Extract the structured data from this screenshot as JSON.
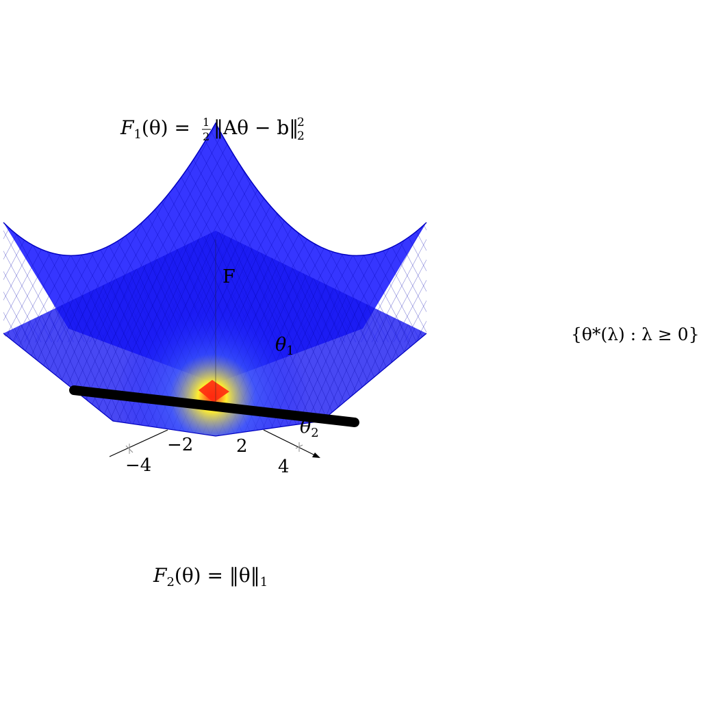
{
  "labels": {
    "f1_formula": {
      "lhs": "F",
      "lhs_sub": "1",
      "lhs_arg": "(θ) = ",
      "frac_num": "1",
      "frac_den": "2",
      "body": "‖Aθ − b‖",
      "sup": "2",
      "sub": "2"
    },
    "f2_formula": {
      "lhs": "F",
      "lhs_sub": "2",
      "rhs": "(θ) = ‖θ‖",
      "sub": "1"
    },
    "path_label": "{θ*(λ) : λ ≥ 0}",
    "vertical_axis": "F",
    "theta1_axis": {
      "base": "θ",
      "sub": "1"
    },
    "theta2_axis": {
      "base": "θ",
      "sub": "2"
    }
  },
  "axes": {
    "left_ticks": [
      "−4",
      "−2"
    ],
    "right_ticks": [
      "2",
      "4"
    ]
  },
  "colors": {
    "surface": "#1010ff",
    "mesh": "#0000cc",
    "center_hot": "#ff2010",
    "center_warm": "#ffee30",
    "path": "#000000"
  }
}
